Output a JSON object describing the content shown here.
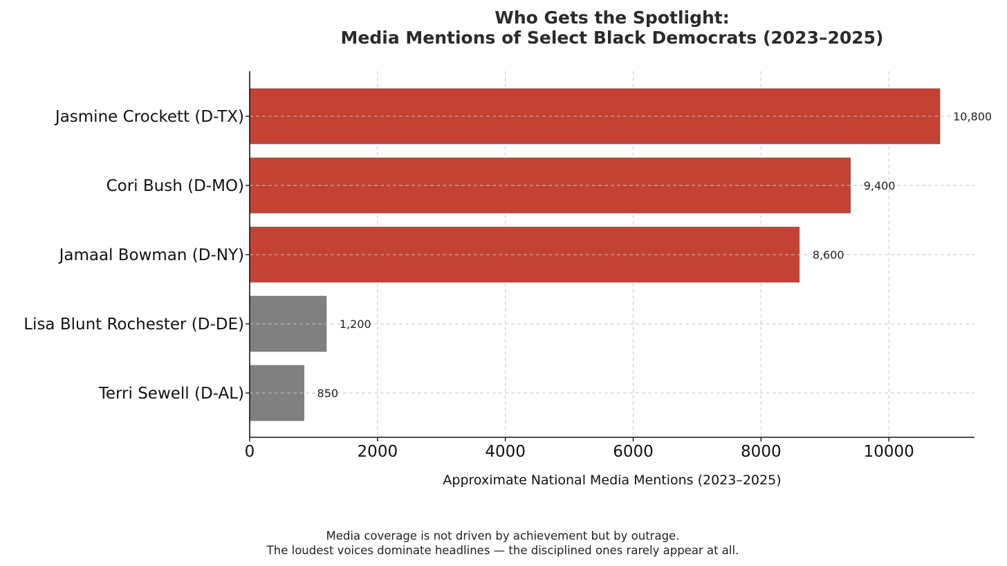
{
  "chart_data": {
    "type": "bar",
    "orientation": "horizontal",
    "title_lines": [
      "Who Gets the Spotlight:",
      "Media Mentions of Select Black Democrats (2023–2025)"
    ],
    "categories": [
      "Jasmine Crockett (D-TX)",
      "Cori Bush (D-MO)",
      "Jamaal Bowman (D-NY)",
      "Lisa Blunt Rochester (D-DE)",
      "Terri Sewell (D-AL)"
    ],
    "values": [
      10800,
      9400,
      8600,
      1200,
      850
    ],
    "value_labels": [
      "10,800",
      "9,400",
      "8,600",
      "1,200",
      "850"
    ],
    "bar_colors": [
      "#c44234",
      "#c44234",
      "#c44234",
      "#808080",
      "#808080"
    ],
    "xlabel": "Approximate National Media Mentions (2023–2025)",
    "ylabel": "",
    "xlim": [
      0,
      11340
    ],
    "xticks": [
      0,
      2000,
      4000,
      6000,
      8000,
      10000
    ],
    "xtick_labels": [
      "0",
      "2000",
      "4000",
      "6000",
      "8000",
      "10000"
    ],
    "grid": true,
    "caption_lines": [
      "Media coverage is not driven by achievement but by outrage.",
      "The loudest voices dominate headlines — the disciplined ones rarely appear at all."
    ]
  }
}
